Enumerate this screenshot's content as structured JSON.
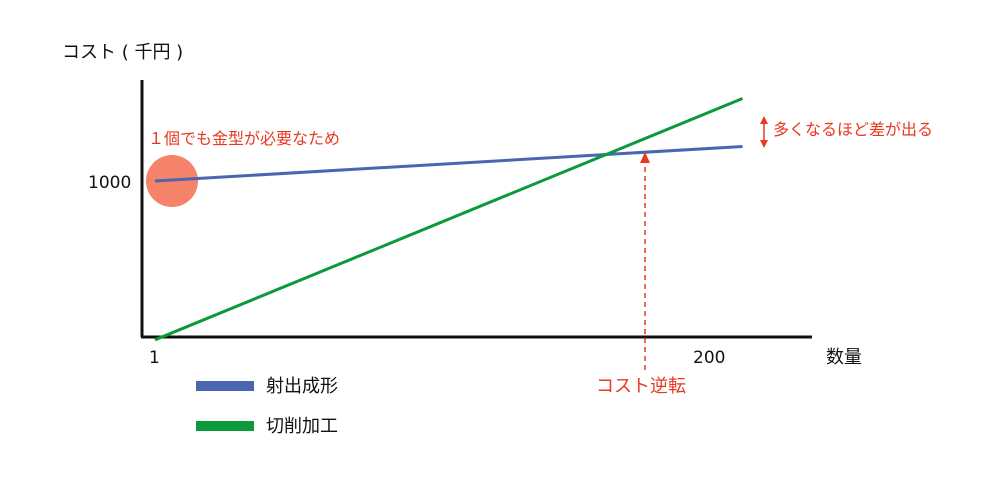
{
  "chart_data": {
    "type": "line",
    "ylabel": "コスト ( 千円 )",
    "xlabel": "数量",
    "x_ticks": [
      "1",
      "200"
    ],
    "y_ticks": [
      "1000"
    ],
    "series": [
      {
        "name": "射出成形",
        "color": "#4a66b0",
        "x": [
          1,
          260
        ],
        "y": [
          1000,
          1276
        ]
      },
      {
        "name": "切削加工",
        "color": "#0a9a3c",
        "x": [
          1,
          260
        ],
        "y": [
          -270,
          1660
        ]
      }
    ],
    "annotations": {
      "mold_note": "１個でも金型が必要なため",
      "gap_note": "多くなるほど差が出る",
      "crossover_label": "コスト逆転"
    },
    "annotation_color": "#e83820",
    "marker_color": "#f7826a",
    "legend_placement": "bottom-left",
    "grid": false
  }
}
